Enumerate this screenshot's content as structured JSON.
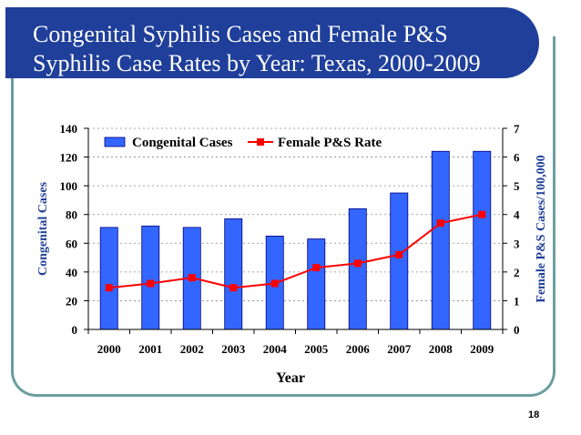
{
  "slide": {
    "title": "Congenital Syphilis Cases and Female P&S\nSyphilis Case Rates by Year: Texas, 2000-2009",
    "page_number": "18"
  },
  "colors": {
    "banner": "#1f3f9a",
    "bar_fill": "#3366ff",
    "bar_stroke": "#000080",
    "line": "#ff0000",
    "frame": "#6b9ea0"
  },
  "chart_data": {
    "type": "bar",
    "categories": [
      "2000",
      "2001",
      "2002",
      "2003",
      "2004",
      "2005",
      "2006",
      "2007",
      "2008",
      "2009"
    ],
    "series": [
      {
        "name": "Congenital Cases",
        "type": "bar",
        "axis": "left",
        "values": [
          71,
          72,
          71,
          77,
          65,
          63,
          84,
          95,
          124,
          124
        ]
      },
      {
        "name": "Female P&S Rate",
        "type": "line",
        "axis": "right",
        "values": [
          1.45,
          1.6,
          1.8,
          1.45,
          1.6,
          2.15,
          2.3,
          2.6,
          3.7,
          4.0
        ]
      }
    ],
    "xlabel": "Year",
    "ylabel": "Congenital Cases",
    "ylabel_right": "Female P&S Cases/100,000",
    "ylim": [
      0,
      140
    ],
    "yticks": [
      0,
      20,
      40,
      60,
      80,
      100,
      120,
      140
    ],
    "ylim_right": [
      0,
      7
    ],
    "yticks_right": [
      0,
      1,
      2,
      3,
      4,
      5,
      6,
      7
    ],
    "grid": "horizontal-dashed",
    "legend_position": "top"
  }
}
